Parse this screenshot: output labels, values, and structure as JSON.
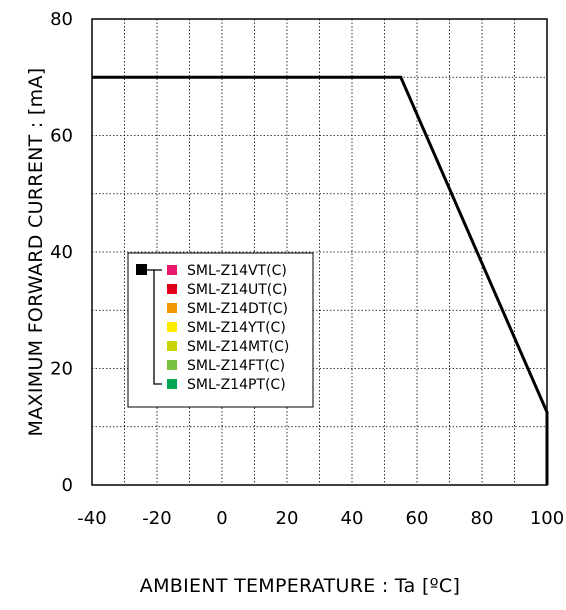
{
  "chart_data": {
    "type": "line",
    "title": "",
    "xlabel": "AMBIENT TEMPERATURE : Ta [ºC]",
    "ylabel": "MAXIMUM FORWARD CURRENT : [mA]",
    "xlim": [
      -40,
      100
    ],
    "ylim": [
      0,
      80
    ],
    "x_ticks": [
      "-40",
      "-20",
      "0",
      "20",
      "40",
      "60",
      "80",
      "100"
    ],
    "y_ticks": [
      "0",
      "20",
      "40",
      "60",
      "80"
    ],
    "grid": true,
    "grid_style": "dotted",
    "legend_position": "left",
    "series": [
      {
        "color": "#000000",
        "points": [
          [
            -40,
            70
          ],
          [
            55,
            70
          ],
          [
            100,
            12.5
          ],
          [
            100,
            0
          ]
        ]
      }
    ],
    "legend": {
      "marker_color": "#000000",
      "items": [
        {
          "label": "SML-Z14VT(C)",
          "color": "#e8186f"
        },
        {
          "label": "SML-Z14UT(C)",
          "color": "#e1001a"
        },
        {
          "label": "SML-Z14DT(C)",
          "color": "#f39800"
        },
        {
          "label": "SML-Z14YT(C)",
          "color": "#ffeb00"
        },
        {
          "label": "SML-Z14MT(C)",
          "color": "#c8d400"
        },
        {
          "label": "SML-Z14FT(C)",
          "color": "#7cc242"
        },
        {
          "label": "SML-Z14PT(C)",
          "color": "#00a651"
        }
      ]
    }
  }
}
